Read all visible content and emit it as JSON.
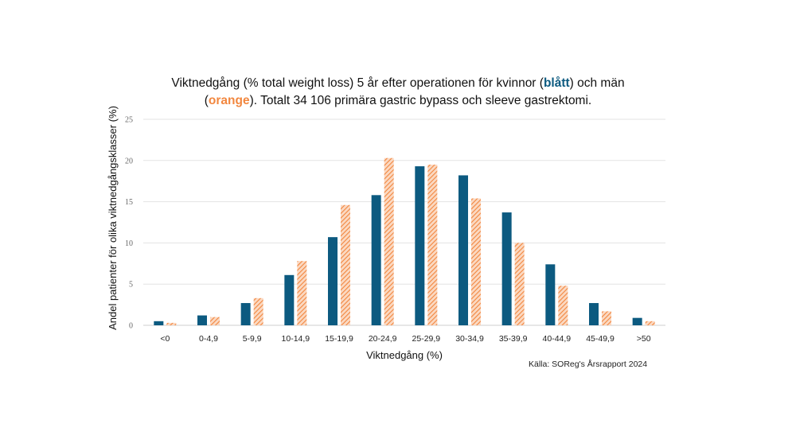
{
  "title": {
    "part1": "Viktnedgång (% total weight loss) 5 år efter operationen för kvinnor (",
    "blue_word": "blått",
    "part2": ") och män",
    "part3": "(",
    "orange_word": "orange",
    "part4": "). Totalt 34 106 primära gastric bypass och sleeve gastrektomi."
  },
  "source": "Källa: SOReg's Årsrapport 2024",
  "colors": {
    "women": "#0c5a80",
    "men": "#f2873f"
  },
  "chart_data": {
    "type": "bar",
    "xlabel": "Viktnedgång (%)",
    "ylabel": "Andel patienter för olika viktnedgångsklasser (%)",
    "ylim": [
      0,
      25
    ],
    "yticks": [
      "0",
      "5",
      "10",
      "15",
      "20",
      "25"
    ],
    "grid": true,
    "categories": [
      "<0",
      "0-4,9",
      "5-9,9",
      "10-14,9",
      "15-19,9",
      "20-24,9",
      "25-29,9",
      "30-34,9",
      "35-39,9",
      "40-44,9",
      "45-49,9",
      ">50"
    ],
    "series": [
      {
        "values": [
          0.5,
          1.2,
          2.7,
          6.1,
          10.7,
          15.8,
          19.3,
          18.2,
          13.7,
          7.4,
          2.7,
          0.9
        ]
      },
      {
        "values": [
          0.3,
          1.0,
          3.3,
          7.8,
          14.6,
          20.3,
          19.5,
          15.4,
          10.0,
          4.8,
          1.7,
          0.5
        ]
      }
    ]
  }
}
